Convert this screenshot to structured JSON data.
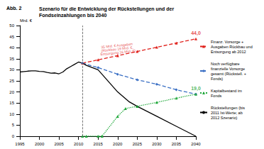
{
  "chart_data": {
    "type": "line",
    "title": "Abb. 2",
    "subtitle": "Szenario für die Entwicklung der Rückstellungen und der Fondseinzahlungen bis 2040",
    "y_label": "Mrd. €",
    "xlim": [
      1995,
      2040
    ],
    "xticks": [
      1995,
      2000,
      2005,
      2010,
      2015,
      2020,
      2025,
      2030,
      2035,
      2040
    ],
    "ylim": [
      0,
      50
    ],
    "yticks": [
      0,
      5,
      10,
      15,
      20,
      25,
      30,
      35,
      40,
      45,
      50
    ],
    "grid": false,
    "legend": "right",
    "vline_x": 2011,
    "series": [
      {
        "name": "Finanz. Vorsorge + Ausgaben Rückbau und Entsorgung ab 2012",
        "color": "#e0201b",
        "marker": "triangle",
        "line_style": "dashed",
        "x": [
          2011,
          2015,
          2020,
          2025,
          2030,
          2035,
          2040
        ],
        "values": [
          33,
          34.5,
          36.4,
          38.3,
          40.2,
          42.1,
          44.0
        ]
      },
      {
        "name": "Noch verfügbare finanzielle Vorsorge gesamt (Rückstell. + Fonds)",
        "color": "#3a6fc4",
        "marker": "diamond",
        "line_style": "dashed",
        "x": [
          2011,
          2015,
          2020,
          2025,
          2030,
          2035,
          2040
        ],
        "values": [
          33,
          31,
          28,
          25.5,
          23.5,
          21,
          19.0
        ]
      },
      {
        "name": "Kapitalbestand im Fonds",
        "color": "#1fa83a",
        "marker": "triangle",
        "line_style": "dotted",
        "x": [
          2011,
          2012,
          2015,
          2016,
          2020,
          2022,
          2025,
          2030,
          2035,
          2040
        ],
        "values": [
          0,
          0,
          0,
          0,
          9,
          12.5,
          13.5,
          15.3,
          17.2,
          19.0
        ]
      },
      {
        "name": "Rückstellungen (bis 2011 Ist-Werte; ab 2012 Szenario)",
        "color": "#000000",
        "marker": "none",
        "line_style": "solid",
        "x": [
          1995,
          1996,
          1997,
          1998,
          1999,
          2000,
          2001,
          2002,
          2003,
          2004,
          2005,
          2006,
          2007,
          2008,
          2009,
          2010,
          2011,
          2012,
          2015,
          2018,
          2020,
          2023,
          2025,
          2030,
          2035,
          2040
        ],
        "values": [
          29,
          29.2,
          29.4,
          29.5,
          29.5,
          29.3,
          29.2,
          28.8,
          28.5,
          28.6,
          28.2,
          29,
          30.5,
          31.5,
          32.5,
          33.5,
          33,
          32,
          30,
          24,
          20,
          15.5,
          13.5,
          9,
          4.5,
          0
        ]
      }
    ],
    "annotations": [
      {
        "text": "44,0",
        "x": 2040,
        "y": 44.0,
        "color": "#e0201b"
      },
      {
        "text": "19,0",
        "x": 2040,
        "y": 19.0,
        "color": "#1fa83a"
      },
      {
        "text": "35 Mrd. € Ausgaben (Rückbau 19 Mrd. €, Entsorgung 16 Mrd. €)",
        "x": 2020,
        "y": 39.5,
        "color": "#e0201b"
      }
    ]
  }
}
